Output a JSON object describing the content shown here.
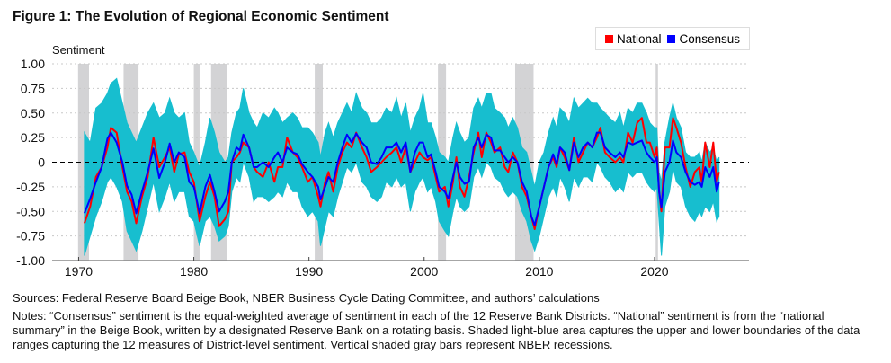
{
  "title": "Figure 1: The Evolution of Regional Economic Sentiment",
  "sources": "Sources: Federal Reserve Board Beige Book, NBER Business Cycle Dating Committee, and authors’ calculations",
  "notes": "Notes: “Consensus” sentiment is the equal-weighted average of sentiment in each of the 12 Reserve Bank Districts. “National” sentiment is from the “national summary” in the Beige Book, written by a designated Reserve Bank on a rotating basis. Shaded light-blue area captures the upper and lower boundaries of the data ranges capturing the 12 measures of District-level sentiment. Vertical shaded gray bars represent NBER recessions.",
  "chart_data": {
    "type": "line",
    "title": "Figure 1: The Evolution of Regional Economic Sentiment",
    "ylabel": "Sentiment",
    "xlabel": "",
    "ylim": [
      -1.0,
      1.0
    ],
    "xlim": [
      1967.7,
      2028.2
    ],
    "yticks": [
      1.0,
      0.75,
      0.5,
      0.25,
      0,
      -0.25,
      -0.5,
      -0.75,
      -1.0
    ],
    "ytick_labels": [
      "1.00",
      "0.75",
      "0.50",
      "0.25",
      "0",
      "-0.25",
      "-0.50",
      "-0.75",
      "-1.00"
    ],
    "xticks": [
      1970,
      1980,
      1990,
      2000,
      2010,
      2020
    ],
    "xtick_labels": [
      "1970",
      "1980",
      "1990",
      "2000",
      "2010",
      "2020"
    ],
    "grid": "horizontal dotted",
    "zero_line": "dashed",
    "legend": {
      "placement": "top-right",
      "entries": [
        "National",
        "Consensus"
      ]
    },
    "colors": {
      "National": "#ff0000",
      "Consensus": "#0000ff",
      "band": "#17becf",
      "recession": "#d3d3d5"
    },
    "recessions": [
      [
        1969.95,
        1970.9
      ],
      [
        1973.9,
        1975.2
      ],
      [
        1980.0,
        1980.5
      ],
      [
        1981.5,
        1982.9
      ],
      [
        1990.5,
        1991.2
      ],
      [
        2001.2,
        2001.9
      ],
      [
        2007.9,
        2009.5
      ],
      [
        2020.1,
        2020.3
      ]
    ],
    "x": [
      1970.5,
      1971.0,
      1971.5,
      1972.0,
      1972.5,
      1972.8,
      1973.3,
      1973.8,
      1974.2,
      1974.6,
      1975.0,
      1975.5,
      1976.0,
      1976.5,
      1977.0,
      1977.5,
      1977.9,
      1978.3,
      1978.7,
      1979.2,
      1979.6,
      1980.0,
      1980.5,
      1981.0,
      1981.4,
      1981.8,
      1982.2,
      1982.7,
      1983.0,
      1983.3,
      1983.7,
      1984.0,
      1984.3,
      1984.8,
      1985.2,
      1985.5,
      1986.0,
      1986.5,
      1987.0,
      1987.3,
      1987.7,
      1988.1,
      1988.6,
      1989.0,
      1989.4,
      1989.9,
      1990.3,
      1990.8,
      1991.0,
      1991.4,
      1991.7,
      1992.1,
      1992.5,
      1992.9,
      1993.3,
      1993.7,
      1994.1,
      1994.6,
      1995.0,
      1995.4,
      1995.9,
      1996.3,
      1996.7,
      1997.2,
      1997.6,
      1998.0,
      1998.4,
      1998.8,
      1999.2,
      1999.6,
      1999.9,
      2000.3,
      2000.6,
      2001.0,
      2001.3,
      2001.8,
      2002.1,
      2002.5,
      2002.8,
      2003.1,
      2003.5,
      2003.9,
      2004.3,
      2004.7,
      2005.0,
      2005.4,
      2005.8,
      2006.1,
      2006.6,
      2007.0,
      2007.3,
      2007.7,
      2008.1,
      2008.5,
      2008.9,
      2009.3,
      2009.6,
      2010.0,
      2010.4,
      2010.8,
      2011.2,
      2011.5,
      2011.8,
      2012.2,
      2012.6,
      2013.0,
      2013.4,
      2013.8,
      2014.2,
      2014.6,
      2015.0,
      2015.3,
      2015.7,
      2016.1,
      2016.6,
      2017.0,
      2017.3,
      2017.7,
      2018.1,
      2018.5,
      2018.9,
      2019.3,
      2019.6,
      2020.0,
      2020.2,
      2020.4,
      2020.6,
      2020.9,
      2021.3,
      2021.6,
      2021.9,
      2022.3,
      2022.7,
      2023.1,
      2023.5,
      2023.9,
      2024.1,
      2024.4,
      2024.8,
      2025.1,
      2025.4,
      2025.6
    ],
    "series": [
      {
        "name": "National",
        "values": [
          -0.62,
          -0.45,
          -0.15,
          -0.05,
          0.15,
          0.35,
          0.3,
          -0.05,
          -0.3,
          -0.4,
          -0.62,
          -0.35,
          -0.15,
          0.25,
          -0.05,
          0.05,
          0.15,
          -0.1,
          0.08,
          0.1,
          -0.1,
          -0.2,
          -0.6,
          -0.35,
          -0.2,
          -0.35,
          -0.65,
          -0.58,
          -0.5,
          0.0,
          0.05,
          0.1,
          0.2,
          0.15,
          -0.05,
          -0.1,
          -0.15,
          0.0,
          -0.2,
          -0.05,
          -0.05,
          0.25,
          0.1,
          0.05,
          -0.05,
          -0.2,
          -0.15,
          -0.35,
          -0.45,
          -0.2,
          -0.1,
          -0.3,
          -0.05,
          0.1,
          0.2,
          0.15,
          0.3,
          0.15,
          0.05,
          -0.1,
          -0.05,
          0.0,
          0.05,
          0.1,
          0.15,
          0.0,
          0.15,
          -0.1,
          0.0,
          0.1,
          0.05,
          0.02,
          0.05,
          -0.15,
          -0.3,
          -0.25,
          -0.45,
          -0.2,
          0.05,
          -0.25,
          -0.35,
          -0.15,
          0.1,
          0.3,
          0.05,
          0.3,
          0.2,
          0.1,
          0.15,
          -0.05,
          -0.1,
          0.1,
          0.0,
          -0.25,
          -0.35,
          -0.55,
          -0.68,
          -0.45,
          -0.25,
          -0.05,
          0.05,
          -0.05,
          0.15,
          0.05,
          -0.08,
          0.25,
          0.0,
          0.1,
          0.2,
          0.15,
          0.25,
          0.35,
          0.1,
          0.05,
          0.0,
          0.05,
          0.0,
          0.3,
          0.2,
          0.4,
          0.45,
          0.2,
          0.2,
          0.05,
          0.15,
          -0.3,
          -0.5,
          0.15,
          0.15,
          0.45,
          0.35,
          0.2,
          -0.05,
          -0.25,
          -0.1,
          -0.05,
          -0.2,
          0.2,
          -0.05,
          0.2,
          -0.2,
          -0.1
        ]
      },
      {
        "name": "Consensus",
        "values": [
          -0.52,
          -0.37,
          -0.2,
          -0.05,
          0.24,
          0.3,
          0.2,
          0.0,
          -0.24,
          -0.33,
          -0.52,
          -0.3,
          -0.1,
          0.14,
          -0.16,
          0.0,
          0.19,
          0.0,
          0.1,
          0.05,
          -0.2,
          -0.25,
          -0.52,
          -0.25,
          -0.13,
          -0.3,
          -0.5,
          -0.4,
          -0.3,
          0.0,
          0.15,
          0.12,
          0.28,
          0.15,
          -0.05,
          -0.05,
          0.0,
          -0.05,
          0.05,
          0.1,
          0.0,
          0.15,
          0.1,
          0.08,
          -0.02,
          -0.1,
          -0.15,
          -0.25,
          -0.38,
          -0.25,
          -0.15,
          -0.2,
          0.0,
          0.15,
          0.28,
          0.2,
          0.29,
          0.2,
          0.15,
          0.0,
          -0.02,
          0.05,
          0.15,
          0.15,
          0.2,
          0.1,
          0.2,
          -0.1,
          0.1,
          0.2,
          0.2,
          0.05,
          0.08,
          -0.1,
          -0.25,
          -0.3,
          -0.37,
          -0.15,
          0.0,
          -0.15,
          -0.22,
          -0.2,
          0.15,
          0.25,
          0.15,
          0.28,
          0.25,
          0.12,
          0.12,
          0.05,
          0.0,
          0.05,
          0.0,
          -0.2,
          -0.3,
          -0.55,
          -0.64,
          -0.45,
          -0.25,
          -0.05,
          0.08,
          -0.02,
          0.15,
          0.1,
          -0.08,
          0.2,
          0.05,
          0.15,
          0.2,
          0.15,
          0.3,
          0.3,
          0.15,
          0.1,
          0.05,
          0.1,
          0.05,
          0.2,
          0.18,
          0.2,
          0.22,
          0.1,
          0.05,
          0.0,
          0.05,
          -0.3,
          -0.46,
          -0.1,
          0.0,
          0.22,
          0.1,
          0.05,
          -0.1,
          -0.2,
          -0.23,
          -0.2,
          -0.25,
          -0.05,
          -0.15,
          -0.05,
          -0.3,
          -0.2
        ]
      }
    ],
    "district_range": {
      "upper": [
        0.3,
        0.2,
        0.55,
        0.6,
        0.7,
        0.8,
        0.85,
        0.6,
        0.4,
        0.3,
        0.2,
        0.35,
        0.5,
        0.6,
        0.45,
        0.5,
        0.65,
        0.5,
        0.45,
        0.5,
        0.2,
        0.1,
        -0.05,
        0.2,
        0.45,
        0.3,
        0.1,
        0.0,
        0.05,
        0.3,
        0.5,
        0.55,
        0.75,
        0.5,
        0.4,
        0.35,
        0.5,
        0.45,
        0.55,
        0.5,
        0.4,
        0.45,
        0.5,
        0.45,
        0.35,
        0.35,
        0.3,
        0.2,
        0.05,
        0.3,
        0.4,
        0.25,
        0.4,
        0.5,
        0.6,
        0.5,
        0.7,
        0.55,
        0.5,
        0.4,
        0.4,
        0.45,
        0.55,
        0.5,
        0.65,
        0.45,
        0.6,
        0.3,
        0.45,
        0.55,
        0.7,
        0.4,
        0.4,
        0.25,
        0.1,
        0.05,
        0.0,
        0.25,
        0.4,
        0.3,
        0.2,
        0.25,
        0.55,
        0.65,
        0.55,
        0.7,
        0.7,
        0.55,
        0.5,
        0.45,
        0.35,
        0.45,
        0.35,
        0.15,
        0.1,
        -0.1,
        -0.25,
        0.0,
        0.1,
        0.3,
        0.45,
        0.35,
        0.55,
        0.5,
        0.4,
        0.65,
        0.55,
        0.6,
        0.65,
        0.6,
        0.6,
        0.55,
        0.5,
        0.45,
        0.4,
        0.5,
        0.35,
        0.55,
        0.5,
        0.6,
        0.6,
        0.5,
        0.4,
        0.35,
        0.35,
        -0.1,
        -0.2,
        0.2,
        0.45,
        0.6,
        0.45,
        0.35,
        0.1,
        0.05,
        0.05,
        0.1,
        0.0,
        0.2,
        0.1,
        0.15,
        0.0,
        0.05
      ],
      "lower": [
        -0.95,
        -0.75,
        -0.55,
        -0.4,
        -0.2,
        -0.15,
        -0.25,
        -0.4,
        -0.7,
        -0.8,
        -0.9,
        -0.7,
        -0.45,
        -0.2,
        -0.5,
        -0.35,
        -0.2,
        -0.4,
        -0.3,
        -0.3,
        -0.55,
        -0.6,
        -0.85,
        -0.6,
        -0.55,
        -0.65,
        -0.8,
        -0.75,
        -0.65,
        -0.3,
        -0.15,
        -0.2,
        0.0,
        -0.15,
        -0.4,
        -0.35,
        -0.35,
        -0.4,
        -0.35,
        -0.3,
        -0.35,
        -0.2,
        -0.3,
        -0.3,
        -0.45,
        -0.55,
        -0.5,
        -0.6,
        -0.85,
        -0.65,
        -0.5,
        -0.55,
        -0.35,
        -0.2,
        -0.05,
        -0.1,
        0.0,
        -0.2,
        -0.25,
        -0.35,
        -0.4,
        -0.35,
        -0.2,
        -0.25,
        -0.15,
        -0.25,
        -0.2,
        -0.5,
        -0.3,
        -0.2,
        -0.15,
        -0.3,
        -0.25,
        -0.4,
        -0.6,
        -0.7,
        -0.75,
        -0.5,
        -0.35,
        -0.45,
        -0.5,
        -0.45,
        -0.15,
        -0.05,
        -0.15,
        0.0,
        -0.05,
        -0.15,
        -0.2,
        -0.3,
        -0.35,
        -0.3,
        -0.35,
        -0.5,
        -0.6,
        -0.8,
        -0.9,
        -0.75,
        -0.55,
        -0.35,
        -0.25,
        -0.35,
        -0.15,
        -0.25,
        -0.4,
        -0.15,
        -0.25,
        -0.15,
        -0.15,
        -0.2,
        0.0,
        -0.05,
        -0.15,
        -0.2,
        -0.3,
        -0.25,
        -0.3,
        -0.1,
        -0.15,
        -0.1,
        -0.1,
        -0.2,
        -0.25,
        -0.3,
        -0.25,
        -0.6,
        -0.95,
        -0.45,
        -0.3,
        -0.05,
        -0.2,
        -0.25,
        -0.45,
        -0.55,
        -0.6,
        -0.5,
        -0.55,
        -0.45,
        -0.5,
        -0.4,
        -0.6,
        -0.55
      ]
    }
  }
}
